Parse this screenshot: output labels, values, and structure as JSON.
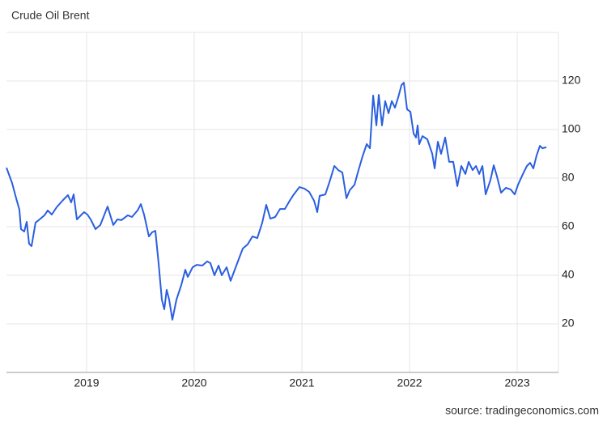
{
  "chart_data": {
    "type": "line",
    "title": "Crude Oil Brent",
    "source": "source: tradingeconomics.com",
    "color": "#2a5fe0",
    "grid": true,
    "xlim": [
      2018.256,
      2023.383
    ],
    "xticks": [
      2019,
      2020,
      2021,
      2022,
      2023
    ],
    "ylim": [
      0,
      140
    ],
    "yticks": [
      20,
      40,
      60,
      80,
      100,
      120
    ],
    "x": [
      2018.256,
      2018.308,
      2018.346,
      2018.376,
      2018.391,
      2018.421,
      2018.444,
      2018.466,
      2018.489,
      2018.526,
      2018.564,
      2018.609,
      2018.639,
      2018.677,
      2018.722,
      2018.782,
      2018.827,
      2018.857,
      2018.88,
      2018.91,
      2018.947,
      2018.977,
      2019.008,
      2019.038,
      2019.083,
      2019.128,
      2019.195,
      2019.248,
      2019.286,
      2019.323,
      2019.383,
      2019.421,
      2019.474,
      2019.504,
      2019.534,
      2019.579,
      2019.609,
      2019.639,
      2019.669,
      2019.699,
      2019.722,
      2019.744,
      2019.767,
      2019.797,
      2019.835,
      2019.88,
      2019.917,
      2019.94,
      2019.985,
      2020.023,
      2020.075,
      2020.12,
      2020.15,
      2020.188,
      2020.226,
      2020.256,
      2020.301,
      2020.338,
      2020.391,
      2020.451,
      2020.496,
      2020.541,
      2020.586,
      2020.632,
      2020.669,
      2020.707,
      2020.752,
      2020.797,
      2020.842,
      2020.887,
      2020.925,
      2020.977,
      2021.023,
      2021.068,
      2021.113,
      2021.143,
      2021.165,
      2021.218,
      2021.263,
      2021.301,
      2021.338,
      2021.376,
      2021.414,
      2021.444,
      2021.489,
      2021.526,
      2021.564,
      2021.602,
      2021.632,
      2021.662,
      2021.692,
      2021.714,
      2021.744,
      2021.774,
      2021.805,
      2021.835,
      2021.865,
      2021.895,
      2021.925,
      2021.947,
      2021.977,
      2022.008,
      2022.038,
      2022.06,
      2022.075,
      2022.09,
      2022.12,
      2022.165,
      2022.211,
      2022.233,
      2022.263,
      2022.293,
      2022.331,
      2022.368,
      2022.406,
      2022.444,
      2022.481,
      2022.519,
      2022.549,
      2022.586,
      2022.617,
      2022.647,
      2022.677,
      2022.707,
      2022.752,
      2022.782,
      2022.812,
      2022.85,
      2022.895,
      2022.94,
      2022.977,
      2023.008,
      2023.053,
      2023.09,
      2023.12,
      2023.15,
      2023.18,
      2023.211,
      2023.233,
      2023.271
    ],
    "values": [
      84.3,
      78,
      71.7,
      67,
      59,
      58,
      62,
      53,
      52,
      61.7,
      63,
      64.7,
      66.7,
      65,
      68,
      71,
      73,
      70,
      73.3,
      63,
      64.7,
      66,
      65,
      63,
      59,
      60.7,
      68.3,
      60.7,
      63,
      62.7,
      64.7,
      64,
      66.7,
      69.3,
      65,
      56,
      57.7,
      58.3,
      45,
      30,
      26,
      34,
      30,
      21.7,
      30,
      36,
      42.3,
      39.3,
      43.3,
      44.3,
      44,
      45.7,
      45,
      40,
      44,
      40,
      43.3,
      37.7,
      44,
      51,
      52.7,
      56,
      55.3,
      61.7,
      69,
      63.3,
      64,
      67.3,
      67.3,
      70.7,
      73.3,
      76.3,
      75.7,
      74.3,
      70.7,
      66,
      72.7,
      73.3,
      79.3,
      85,
      83.3,
      82.3,
      71.7,
      75,
      77.3,
      83.3,
      89,
      94,
      92.3,
      114,
      101.7,
      114.3,
      101.7,
      111.7,
      106.7,
      111.7,
      109,
      113.3,
      118.3,
      119.3,
      108.3,
      107.3,
      98.3,
      96.7,
      101.7,
      94,
      97.3,
      96,
      90,
      84,
      95,
      90,
      96.7,
      86.7,
      86.7,
      76.7,
      85,
      81.7,
      86.7,
      83.3,
      85,
      81.7,
      85,
      73.3,
      79.3,
      85.3,
      80.7,
      74,
      76,
      75.3,
      73.3,
      77.3,
      81.7,
      85,
      86.3,
      84,
      89.3,
      93.3,
      92.3,
      92.7
    ]
  }
}
